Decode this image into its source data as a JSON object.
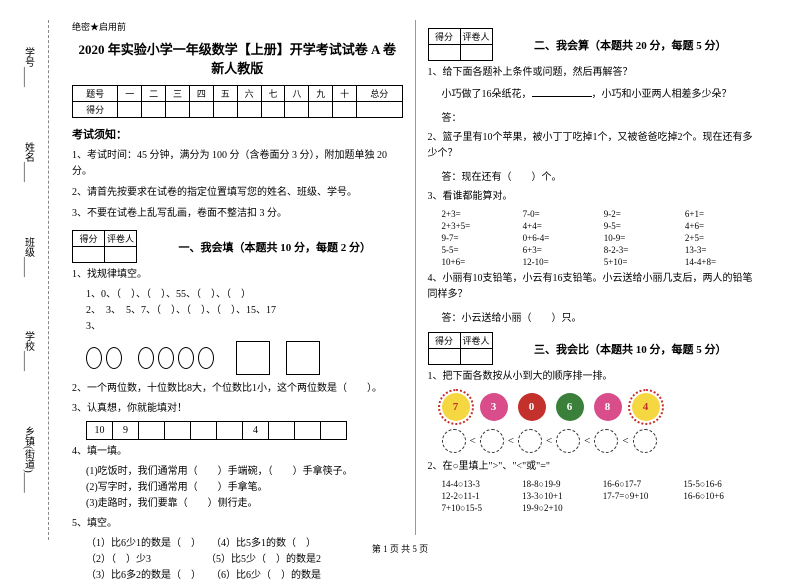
{
  "meta": {
    "secret": "绝密★启用前",
    "title": "2020 年实验小学一年级数学【上册】开学考试试卷 A 卷 新人教版",
    "footer": "第 1 页 共 5 页"
  },
  "side": {
    "labels": [
      "学号____",
      "姓名____",
      "班级____",
      "学校____",
      "乡镇(街道)____"
    ],
    "fold": [
      "题",
      "订",
      "内",
      "线",
      "封"
    ]
  },
  "score_table": {
    "headers": [
      "题号",
      "一",
      "二",
      "三",
      "四",
      "五",
      "六",
      "七",
      "八",
      "九",
      "十",
      "总分"
    ],
    "row2_label": "得分"
  },
  "notice": {
    "title": "考试须知：",
    "items": [
      "1、考试时间：45 分钟，满分为 100 分（含卷面分 3 分），附加题单独 20 分。",
      "2、请首先按要求在试卷的指定位置填写您的姓名、班级、学号。",
      "3、不要在试卷上乱写乱画，卷面不整洁扣 3 分。"
    ]
  },
  "section_labels": {
    "score": "得分",
    "rater": "评卷人"
  },
  "s1": {
    "title": "一、我会填（本题共 10 分，每题 2 分）",
    "q1": "1、找规律填空。",
    "q1a": "1、0、（　）、（　）、55、（　）、（　）",
    "q1b": "2、　3、　5、7、（　）、（　）、（　）、15、17",
    "q1c": "3、",
    "q2": "2、一个两位数，十位数比8大，个位数比1小，这个两位数是（　　）。",
    "q3": "3、认真想，你就能填对！",
    "cells": [
      "10",
      "9",
      "",
      "",
      "",
      "",
      "4",
      "",
      "",
      ""
    ],
    "q4": "4、填一填。",
    "q4a": "(1)吃饭时，我们通常用（　　）手端碗，（　　）手拿筷子。",
    "q4b": "(2)写字时，我们通常用（　　）手拿笔。",
    "q4c": "(3)走路时，我们要靠（　　）侧行走。",
    "q5": "5、填空。",
    "q5a": "（1）比6少1的数是（　）　　（4）比5多1的数（　）",
    "q5b": "（2）（　）少3　　　　　　（5）比5少（　）的数是2",
    "q5c": "（3）比6多2的数是（　）　　（6）比6少（　）的数是"
  },
  "s2": {
    "title": "二、我会算（本题共 20 分，每题 5 分）",
    "q1": "1、给下面各题补上条件或问题，然后再解答？",
    "q1a": "小巧做了16朵纸花，",
    "q1b": "，小巧和小亚两人相差多少朵？",
    "ans": "答：",
    "q2": "2、篮子里有10个苹果，被小丁丁吃掉1个，又被爸爸吃掉2个。现在还有多少个？",
    "q2ans": "答：现在还有（　　）个。",
    "q3": "3、看谁都能算对。",
    "eqs": [
      "2+3=",
      "7-0=",
      "9-2=",
      "6+1=",
      "2+3+5=",
      "4+4=",
      "9-5=",
      "4+6=",
      "9-7=",
      "0+6-4=",
      "10-9=",
      "2+5=",
      "5-5=",
      "6+3=",
      "8-2-3=",
      "13-3=",
      "10+6=",
      "12-10=",
      "5+10=",
      "14-4+8="
    ],
    "q4": "4、小丽有10支铅笔，小云有16支铅笔。小云送给小丽几支后，两人的铅笔同样多？",
    "q4ans": "答：小云送给小丽（　　）只。"
  },
  "s3": {
    "title": "三、我会比（本题共 10 分，每题 5 分）",
    "q1": "1、把下面各数按从小到大的顺序排一排。",
    "flowers": [
      {
        "n": "7",
        "bg": "#f5d742",
        "fg": "#c4302b"
      },
      {
        "n": "3",
        "bg": "#d94d8a",
        "fg": "#fff"
      },
      {
        "n": "0",
        "bg": "#c4302b",
        "fg": "#fff"
      },
      {
        "n": "6",
        "bg": "#3a7f3a",
        "fg": "#fff"
      },
      {
        "n": "8",
        "bg": "#d94d8a",
        "fg": "#fff"
      },
      {
        "n": "4",
        "bg": "#f5d742",
        "fg": "#c4302b"
      }
    ],
    "q2": "2、在○里填上\">\"、\"<\"或\"=\"",
    "comps": [
      "14-4○13-3",
      "18-8○19-9",
      "16-6○17-7",
      "15-5○16-6",
      "12-2○11-1",
      "13-3○10+1",
      "17-7=○9+10",
      "16-6○10+6",
      "7+10○15-5",
      "19-9○2+10"
    ]
  }
}
